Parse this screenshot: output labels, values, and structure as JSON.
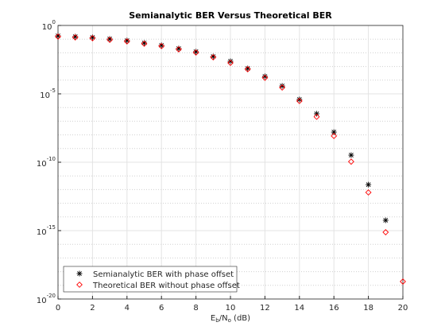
{
  "chart_data": {
    "type": "scatter",
    "title": "Semianalytic BER Versus Theoretical BER",
    "xlabel": "E_b/N_o (dB)",
    "x": [
      0,
      1,
      2,
      3,
      4,
      5,
      6,
      7,
      8,
      9,
      10,
      11,
      12,
      13,
      14,
      15,
      16,
      17,
      18,
      19,
      20
    ],
    "series": [
      {
        "name": "Semianalytic BER with phase offset",
        "color": "#000000",
        "marker": "star",
        "values": [
          0.175,
          0.153,
          0.134,
          0.103,
          0.0786,
          0.0526,
          0.0352,
          0.0206,
          0.0121,
          0.0054,
          0.00242,
          0.00072,
          0.00019,
          3.8e-05,
          3.9e-06,
          3.5e-07,
          1.6e-08,
          3.3e-10,
          2.3e-12,
          5.7e-15,
          null
        ]
      },
      {
        "name": "Theoretical BER without phase offset",
        "color": "#ff0000",
        "marker": "diamond",
        "values": [
          0.153,
          0.134,
          0.117,
          0.0898,
          0.0687,
          0.046,
          0.0308,
          0.018,
          0.0105,
          0.0047,
          0.00185,
          0.00063,
          0.00015,
          2.9e-05,
          3e-06,
          2.1e-07,
          8.3e-09,
          1.1e-10,
          6.2e-13,
          7.6e-16,
          1.9e-19
        ]
      }
    ],
    "xlim": [
      0,
      20
    ],
    "xticks": [
      0,
      2,
      4,
      6,
      8,
      10,
      12,
      14,
      16,
      18,
      20
    ],
    "ylim": [
      1e-20,
      1
    ],
    "yticks": [
      {
        "value": 1e-20,
        "label": "10^-20"
      },
      {
        "value": 1e-15,
        "label": "10^-15"
      },
      {
        "value": 1e-10,
        "label": "10^-10"
      },
      {
        "value": 1e-05,
        "label": "10^-5"
      },
      {
        "value": 1,
        "label": "10^0"
      }
    ],
    "log_y": true,
    "grid": true,
    "minor_grid": true,
    "legend": "lower left"
  }
}
